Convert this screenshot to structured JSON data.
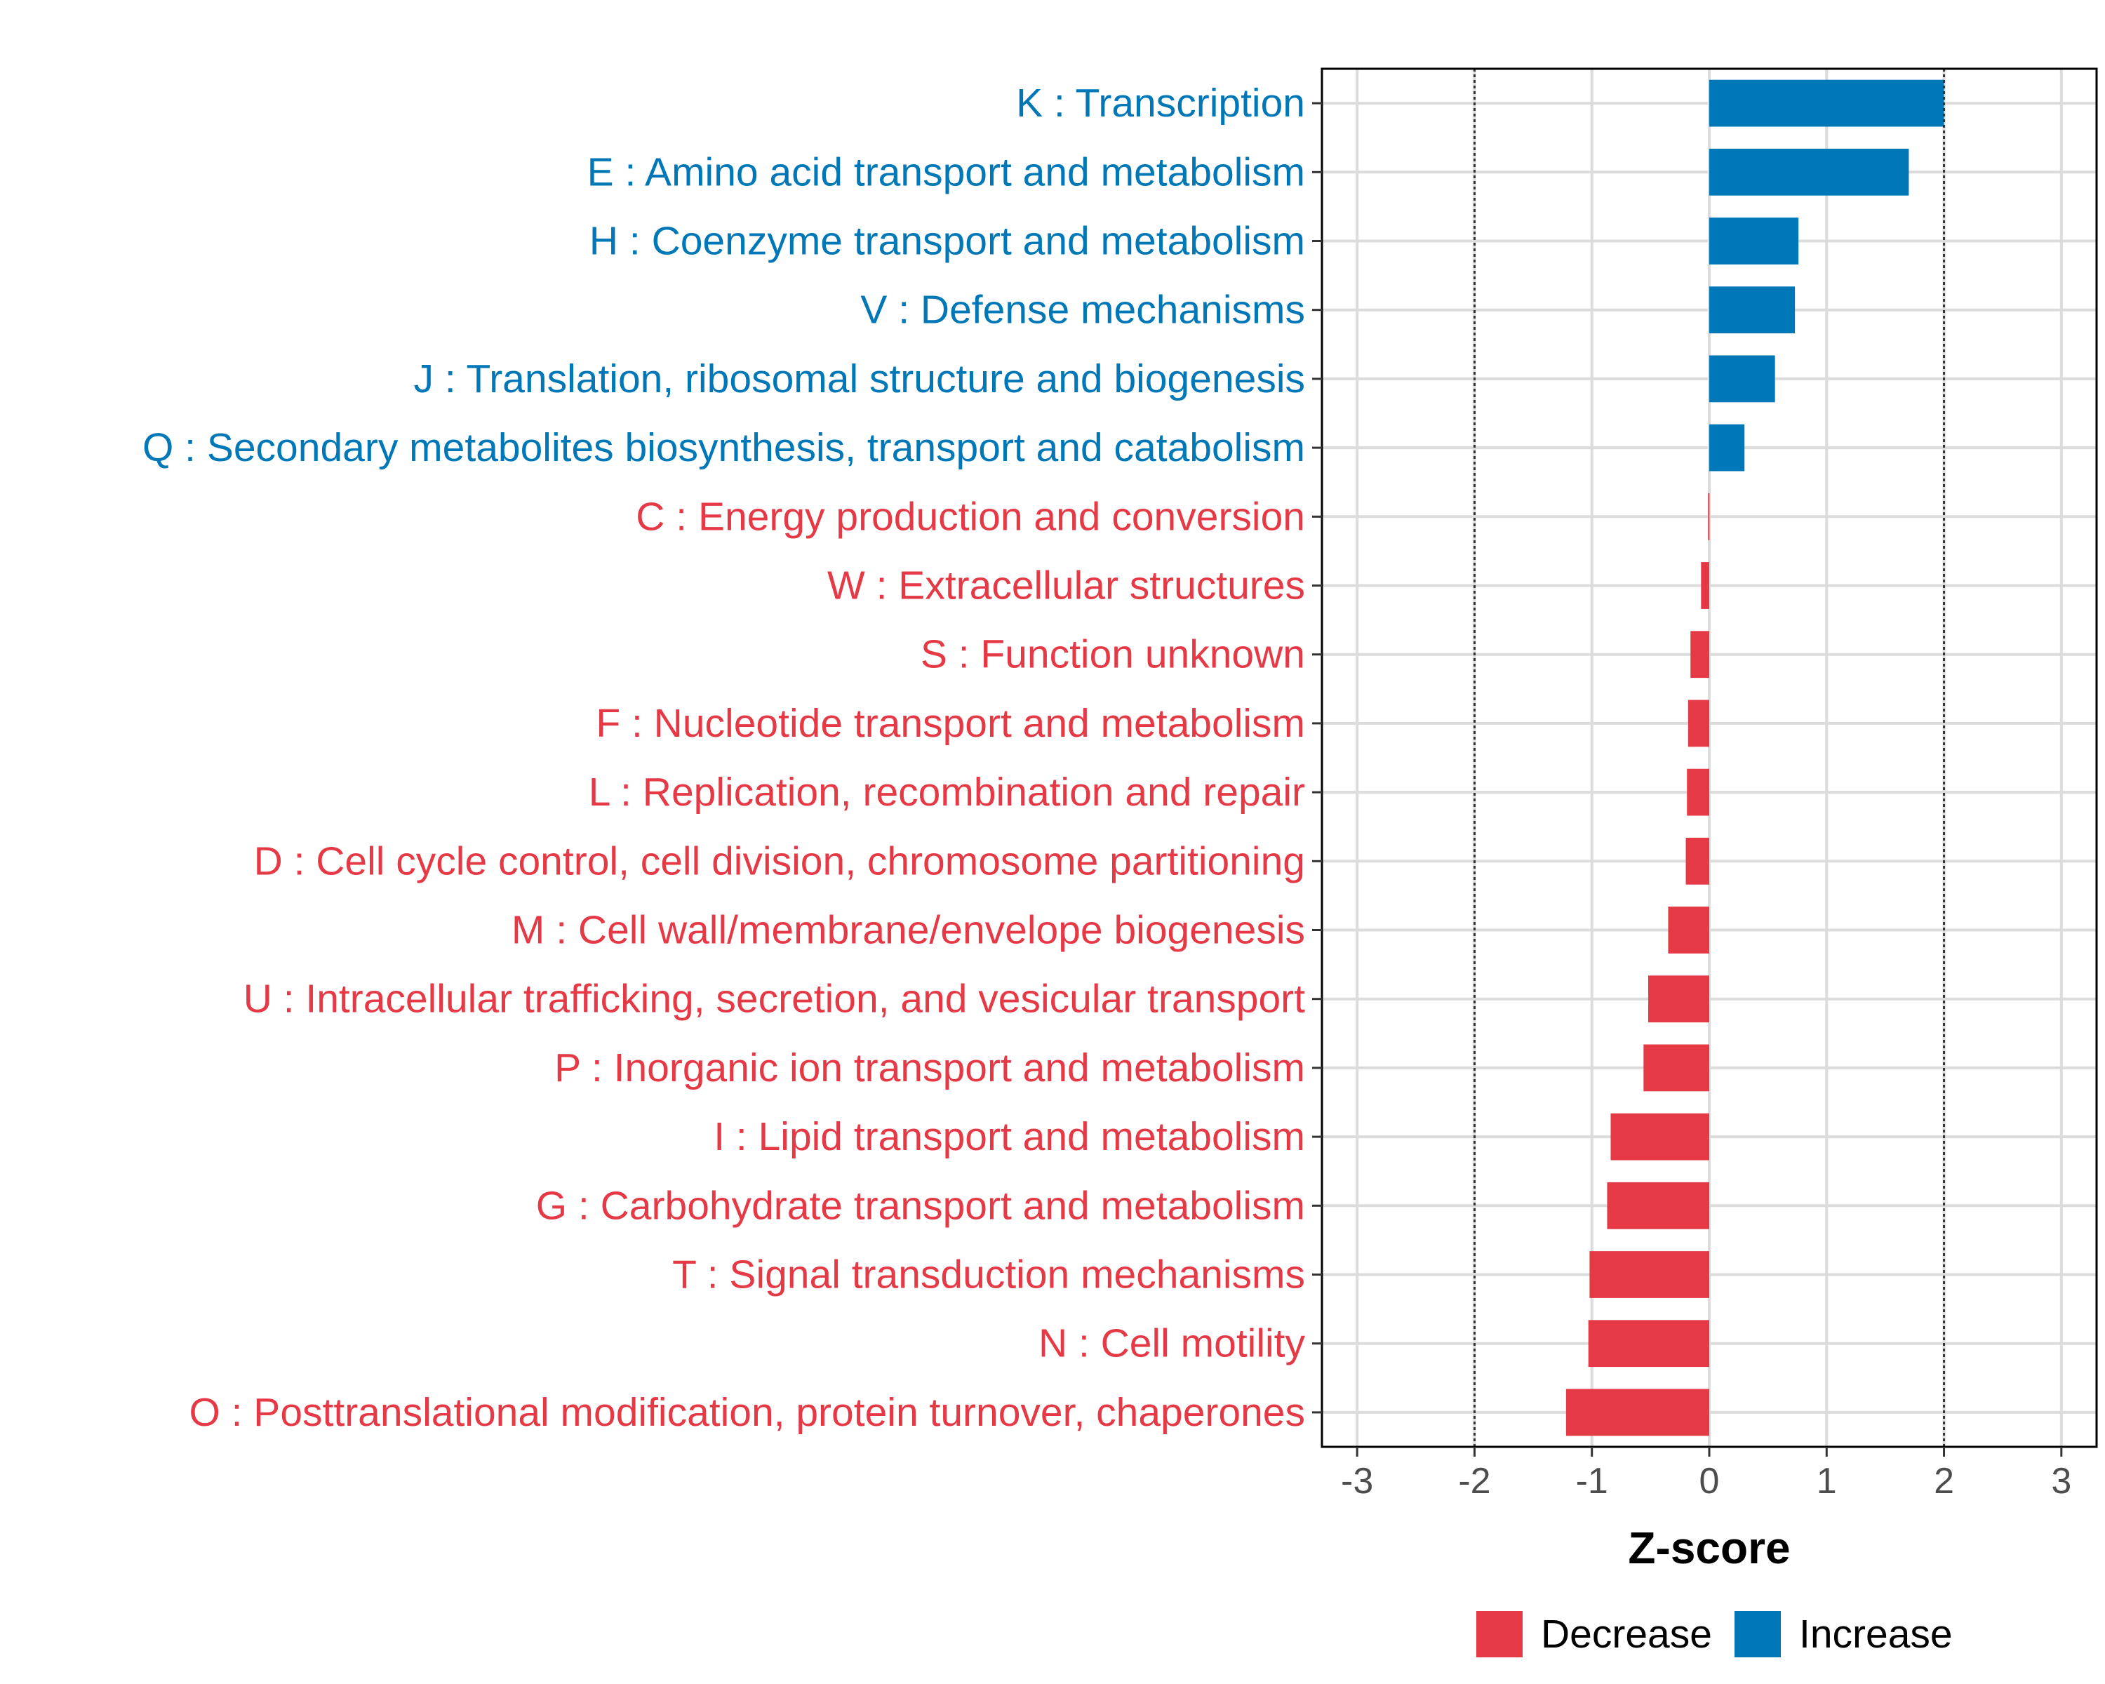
{
  "chart_data": {
    "type": "bar",
    "orientation": "horizontal",
    "xlabel": "Z-score",
    "xlim": [
      -3.3,
      3.3
    ],
    "xticks": [
      -3,
      -2,
      -1,
      0,
      1,
      2,
      3
    ],
    "threshold_lines": [
      -2,
      2
    ],
    "grid": true,
    "categories": [
      {
        "label": "K : Transcription",
        "value": 2.0,
        "group": "Increase"
      },
      {
        "label": "E : Amino acid transport and metabolism",
        "value": 1.7,
        "group": "Increase"
      },
      {
        "label": "H : Coenzyme transport and metabolism",
        "value": 0.76,
        "group": "Increase"
      },
      {
        "label": "V : Defense mechanisms",
        "value": 0.73,
        "group": "Increase"
      },
      {
        "label": "J : Translation, ribosomal structure and biogenesis",
        "value": 0.56,
        "group": "Increase"
      },
      {
        "label": "Q : Secondary metabolites biosynthesis, transport and catabolism",
        "value": 0.3,
        "group": "Increase"
      },
      {
        "label": "C : Energy production and conversion",
        "value": -0.01,
        "group": "Decrease"
      },
      {
        "label": "W : Extracellular structures",
        "value": -0.07,
        "group": "Decrease"
      },
      {
        "label": "S : Function unknown",
        "value": -0.16,
        "group": "Decrease"
      },
      {
        "label": "F : Nucleotide transport and metabolism",
        "value": -0.18,
        "group": "Decrease"
      },
      {
        "label": "L : Replication, recombination and repair",
        "value": -0.19,
        "group": "Decrease"
      },
      {
        "label": "D : Cell cycle control, cell division, chromosome partitioning",
        "value": -0.2,
        "group": "Decrease"
      },
      {
        "label": "M : Cell wall/membrane/envelope biogenesis",
        "value": -0.35,
        "group": "Decrease"
      },
      {
        "label": "U : Intracellular trafficking, secretion, and vesicular transport",
        "value": -0.52,
        "group": "Decrease"
      },
      {
        "label": "P : Inorganic ion transport and metabolism",
        "value": -0.56,
        "group": "Decrease"
      },
      {
        "label": "I : Lipid transport and metabolism",
        "value": -0.84,
        "group": "Decrease"
      },
      {
        "label": "G : Carbohydrate transport and metabolism",
        "value": -0.87,
        "group": "Decrease"
      },
      {
        "label": "T : Signal transduction mechanisms",
        "value": -1.02,
        "group": "Decrease"
      },
      {
        "label": "N : Cell motility",
        "value": -1.03,
        "group": "Decrease"
      },
      {
        "label": "O : Posttranslational modification, protein turnover, chaperones",
        "value": -1.22,
        "group": "Decrease"
      }
    ],
    "legend": {
      "placement": "bottom",
      "entries": [
        {
          "name": "Decrease",
          "color": "#E63946"
        },
        {
          "name": "Increase",
          "color": "#0077B6"
        }
      ]
    }
  }
}
